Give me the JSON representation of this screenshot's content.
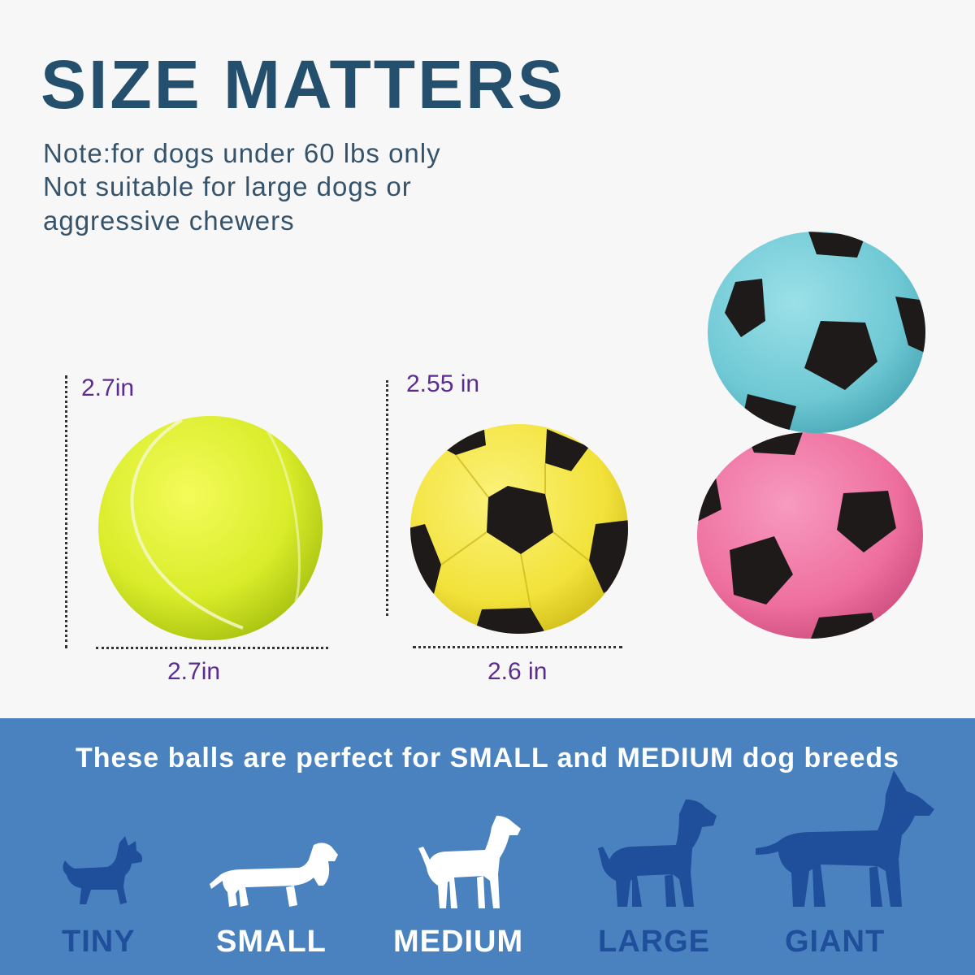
{
  "header": {
    "title": "SIZE MATTERS",
    "note_lines": [
      "Note:for dogs under 60 lbs only",
      "Not suitable for large dogs or",
      "aggressive chewers"
    ]
  },
  "products": {
    "tennis_ball": {
      "icon": "tennis-ball-icon",
      "height_label": "2.7in",
      "width_label": "2.7in",
      "color": "#d9ec2a"
    },
    "soccer_ball": {
      "icon": "soccer-ball-icon",
      "height_label": "2.55 in",
      "width_label": "2.6 in",
      "color": "#f2e23a"
    },
    "stacked_balls": [
      {
        "icon": "soccer-ball-icon",
        "color": "#6ec8d4"
      },
      {
        "icon": "soccer-ball-icon",
        "color": "#ee6f9e"
      }
    ]
  },
  "breeds": {
    "tagline": "These balls are perfect for SMALL and MEDIUM dog breeds",
    "items": [
      {
        "label": "TINY",
        "icon": "tiny-dog-icon",
        "color": "#1f4e9a"
      },
      {
        "label": "SMALL",
        "icon": "dachshund-icon",
        "color": "#ffffff"
      },
      {
        "label": "MEDIUM",
        "icon": "medium-dog-icon",
        "color": "#ffffff"
      },
      {
        "label": "LARGE",
        "icon": "large-dog-icon",
        "color": "#1f4e9a"
      },
      {
        "label": "GIANT",
        "icon": "giant-dog-icon",
        "color": "#1f4e9a"
      }
    ]
  },
  "colors": {
    "headline": "#24506e",
    "dimension_text": "#5a2d8e",
    "banner": "#4a82c0"
  }
}
